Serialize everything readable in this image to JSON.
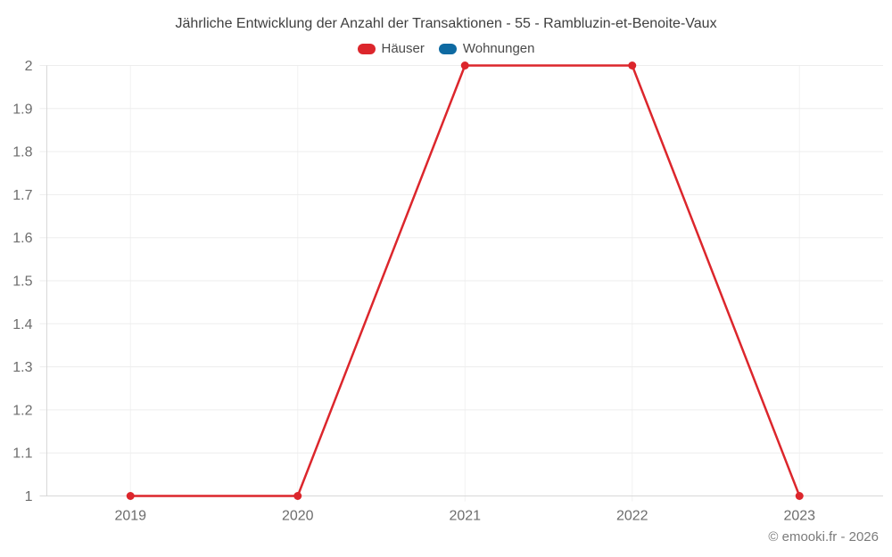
{
  "header": {
    "title": "Jährliche Entwicklung der Anzahl der Transaktionen - 55 - Rambluzin-et-Benoite-Vaux"
  },
  "footer": {
    "credit": "© emooki.fr - 2026"
  },
  "chart_data": {
    "type": "line",
    "title": "Jährliche Entwicklung der Anzahl der Transaktionen - 55 - Rambluzin-et-Benoite-Vaux",
    "categories": [
      "2019",
      "2020",
      "2021",
      "2022",
      "2023"
    ],
    "series": [
      {
        "name": "Häuser",
        "color": "#dc262c",
        "values": [
          1,
          1,
          2,
          2,
          1
        ]
      },
      {
        "name": "Wohnungen",
        "color": "#0e6aa2",
        "values": [
          null,
          null,
          null,
          null,
          null
        ]
      }
    ],
    "xlabel": "",
    "ylabel": "",
    "ylim": [
      1,
      2
    ],
    "yticks": [
      "1",
      "1.1",
      "1.2",
      "1.3",
      "1.4",
      "1.5",
      "1.6",
      "1.7",
      "1.8",
      "1.9",
      "2"
    ],
    "grid": true,
    "legend_position": "top"
  }
}
